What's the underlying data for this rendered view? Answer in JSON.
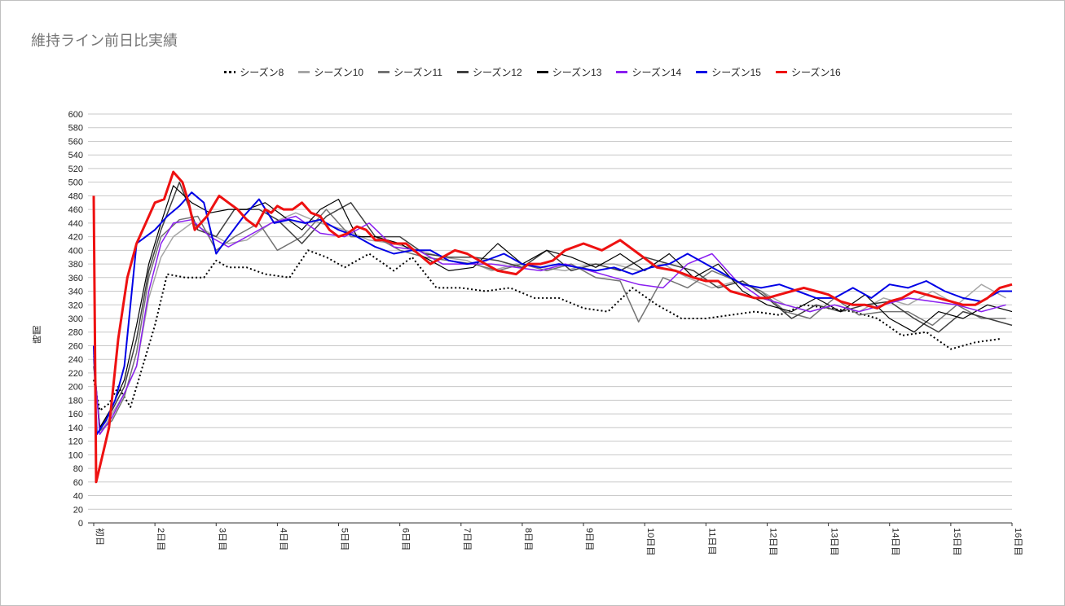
{
  "chart_data": {
    "type": "line",
    "title": "維持ライン前日比実績",
    "ylabel": "時間",
    "ylim": [
      0,
      600
    ],
    "ytick_step": 20,
    "grid": true,
    "legend_position": "top",
    "x_labels": [
      "初日",
      "2日目",
      "3日目",
      "4日目",
      "5日目",
      "6日目",
      "7日目",
      "8日目",
      "9日目",
      "10日目",
      "11日目",
      "12日目",
      "13日目",
      "14日目",
      "15日目",
      "16日目"
    ],
    "x_domain": [
      0,
      15
    ],
    "series": [
      {
        "name": "シーズン8",
        "color": "#000000",
        "style": "dotted",
        "width": 2,
        "x": [
          0,
          0.1,
          0.25,
          0.4,
          0.6,
          0.8,
          1.0,
          1.2,
          1.5,
          1.8,
          2.0,
          2.2,
          2.5,
          2.8,
          3.2,
          3.5,
          3.8,
          4.1,
          4.5,
          4.9,
          5.2,
          5.6,
          6.0,
          6.4,
          6.8,
          7.2,
          7.6,
          8.0,
          8.4,
          8.8,
          9.2,
          9.6,
          10.0,
          10.4,
          10.8,
          11.2,
          11.6,
          12.0,
          12.4,
          12.8,
          13.2,
          13.6,
          14.0,
          14.4,
          14.8
        ],
        "y": [
          210,
          165,
          175,
          200,
          170,
          230,
          290,
          365,
          360,
          360,
          385,
          375,
          375,
          365,
          360,
          400,
          390,
          375,
          395,
          370,
          390,
          345,
          345,
          340,
          345,
          330,
          330,
          315,
          310,
          345,
          320,
          300,
          300,
          305,
          310,
          305,
          320,
          315,
          310,
          300,
          275,
          280,
          255,
          265,
          270
        ]
      },
      {
        "name": "シーズン10",
        "color": "#a6a6a6",
        "style": "solid",
        "width": 1.5,
        "x": [
          0,
          0.1,
          0.3,
          0.5,
          0.7,
          0.9,
          1.1,
          1.3,
          1.6,
          1.9,
          2.2,
          2.5,
          2.9,
          3.3,
          3.7,
          4.1,
          4.5,
          4.9,
          5.3,
          5.7,
          6.1,
          6.5,
          6.9,
          7.3,
          7.7,
          8.1,
          8.5,
          8.9,
          9.3,
          9.7,
          10.1,
          10.5,
          10.9,
          11.3,
          11.7,
          12.1,
          12.5,
          12.9,
          13.3,
          13.7,
          14.1,
          14.5,
          14.9
        ],
        "y": [
          250,
          130,
          160,
          190,
          230,
          330,
          390,
          420,
          440,
          425,
          410,
          415,
          440,
          455,
          440,
          430,
          415,
          410,
          400,
          390,
          385,
          370,
          380,
          375,
          370,
          380,
          380,
          370,
          380,
          360,
          345,
          355,
          340,
          320,
          310,
          320,
          310,
          330,
          320,
          340,
          320,
          350,
          330
        ]
      },
      {
        "name": "シーズン11",
        "color": "#737373",
        "style": "solid",
        "width": 1.5,
        "x": [
          0,
          0.1,
          0.3,
          0.5,
          0.7,
          0.9,
          1.1,
          1.4,
          1.7,
          2.0,
          2.3,
          2.7,
          3.0,
          3.4,
          3.8,
          4.2,
          4.6,
          5.0,
          5.4,
          5.8,
          6.2,
          6.6,
          7.0,
          7.4,
          7.8,
          8.2,
          8.6,
          8.9,
          9.3,
          9.7,
          10.1,
          10.5,
          10.9,
          11.3,
          11.7,
          12.1,
          12.5,
          12.9,
          13.3,
          13.7,
          14.1,
          14.5,
          14.9
        ],
        "y": [
          240,
          135,
          150,
          185,
          250,
          360,
          420,
          445,
          450,
          400,
          420,
          440,
          400,
          420,
          460,
          420,
          420,
          400,
          390,
          385,
          380,
          370,
          380,
          370,
          380,
          360,
          355,
          295,
          360,
          345,
          370,
          355,
          340,
          310,
          300,
          330,
          305,
          310,
          310,
          290,
          320,
          300,
          300
        ]
      },
      {
        "name": "シーズン12",
        "color": "#404040",
        "style": "solid",
        "width": 1.5,
        "x": [
          0,
          0.1,
          0.3,
          0.5,
          0.7,
          0.9,
          1.1,
          1.4,
          1.7,
          2.0,
          2.3,
          2.7,
          3.0,
          3.4,
          3.8,
          4.2,
          4.6,
          5.0,
          5.4,
          5.8,
          6.2,
          6.6,
          7.0,
          7.4,
          7.8,
          8.2,
          8.6,
          9.0,
          9.4,
          9.8,
          10.2,
          10.6,
          11.0,
          11.4,
          11.8,
          12.2,
          12.6,
          13.0,
          13.4,
          13.8,
          14.2,
          14.6,
          15.0
        ],
        "y": [
          230,
          140,
          165,
          200,
          270,
          370,
          430,
          500,
          430,
          420,
          460,
          460,
          445,
          410,
          450,
          470,
          420,
          420,
          395,
          390,
          390,
          385,
          375,
          400,
          370,
          380,
          370,
          390,
          380,
          370,
          345,
          355,
          330,
          300,
          320,
          310,
          320,
          325,
          300,
          280,
          310,
          300,
          290
        ]
      },
      {
        "name": "シーズン13",
        "color": "#000000",
        "style": "solid",
        "width": 1.2,
        "x": [
          0,
          0.1,
          0.3,
          0.5,
          0.7,
          0.9,
          1.1,
          1.3,
          1.6,
          1.9,
          2.2,
          2.5,
          2.8,
          3.1,
          3.4,
          3.7,
          4.0,
          4.3,
          4.6,
          5.0,
          5.4,
          5.8,
          6.2,
          6.6,
          7.0,
          7.4,
          7.8,
          8.2,
          8.6,
          9.0,
          9.4,
          9.8,
          10.2,
          10.6,
          11.0,
          11.4,
          11.8,
          12.2,
          12.6,
          13.0,
          13.4,
          13.8,
          14.2,
          14.6,
          15.0
        ],
        "y": [
          240,
          140,
          170,
          210,
          290,
          380,
          440,
          495,
          470,
          455,
          460,
          460,
          470,
          450,
          430,
          460,
          475,
          420,
          420,
          410,
          390,
          370,
          375,
          410,
          380,
          400,
          390,
          375,
          395,
          370,
          395,
          360,
          380,
          340,
          320,
          310,
          330,
          310,
          335,
          300,
          280,
          310,
          300,
          320,
          310
        ]
      },
      {
        "name": "シーズン14",
        "color": "#8a1ef0",
        "style": "solid",
        "width": 1.5,
        "x": [
          0,
          0.1,
          0.3,
          0.5,
          0.7,
          0.9,
          1.1,
          1.3,
          1.6,
          1.9,
          2.2,
          2.5,
          2.9,
          3.3,
          3.7,
          4.1,
          4.5,
          4.9,
          5.3,
          5.7,
          6.1,
          6.5,
          6.9,
          7.3,
          7.7,
          8.1,
          8.5,
          8.9,
          9.3,
          9.7,
          10.1,
          10.5,
          10.9,
          11.3,
          11.7,
          12.1,
          12.5,
          12.9,
          13.3,
          13.7,
          14.1,
          14.5,
          14.9
        ],
        "y": [
          245,
          130,
          155,
          190,
          230,
          340,
          410,
          440,
          445,
          420,
          405,
          420,
          440,
          450,
          425,
          420,
          440,
          405,
          400,
          380,
          380,
          380,
          375,
          370,
          380,
          370,
          360,
          350,
          345,
          380,
          395,
          355,
          330,
          320,
          310,
          320,
          310,
          320,
          330,
          325,
          320,
          310,
          320
        ]
      },
      {
        "name": "シーズン15",
        "color": "#0000e6",
        "style": "solid",
        "width": 2,
        "x": [
          0,
          0.05,
          0.2,
          0.35,
          0.5,
          0.7,
          0.85,
          1.0,
          1.2,
          1.4,
          1.6,
          1.8,
          2.0,
          2.2,
          2.45,
          2.7,
          2.95,
          3.2,
          3.45,
          3.7,
          4.0,
          4.3,
          4.6,
          4.9,
          5.2,
          5.5,
          5.8,
          6.1,
          6.4,
          6.7,
          7.0,
          7.3,
          7.6,
          7.9,
          8.2,
          8.5,
          8.8,
          9.1,
          9.4,
          9.7,
          10.0,
          10.3,
          10.6,
          10.9,
          11.2,
          11.5,
          11.8,
          12.1,
          12.4,
          12.7,
          13.0,
          13.3,
          13.6,
          13.9,
          14.2,
          14.5,
          14.8,
          15.0
        ],
        "y": [
          260,
          130,
          150,
          180,
          230,
          410,
          420,
          430,
          450,
          465,
          485,
          470,
          395,
          420,
          450,
          475,
          440,
          445,
          440,
          445,
          430,
          420,
          405,
          395,
          400,
          400,
          385,
          380,
          385,
          395,
          380,
          375,
          380,
          375,
          370,
          375,
          365,
          375,
          380,
          395,
          380,
          365,
          350,
          345,
          350,
          340,
          330,
          330,
          345,
          330,
          350,
          345,
          355,
          340,
          330,
          325,
          340,
          340
        ]
      },
      {
        "name": "シーズン16",
        "color": "#ee1111",
        "style": "solid",
        "width": 3,
        "x": [
          0,
          0.04,
          0.12,
          0.25,
          0.4,
          0.55,
          0.7,
          0.85,
          1.0,
          1.15,
          1.3,
          1.45,
          1.55,
          1.65,
          1.75,
          1.85,
          1.95,
          2.05,
          2.2,
          2.35,
          2.5,
          2.65,
          2.8,
          2.9,
          3.0,
          3.1,
          3.25,
          3.4,
          3.55,
          3.7,
          3.85,
          4.0,
          4.15,
          4.3,
          4.45,
          4.6,
          4.75,
          4.9,
          5.1,
          5.3,
          5.5,
          5.7,
          5.9,
          6.1,
          6.3,
          6.6,
          6.9,
          7.1,
          7.3,
          7.5,
          7.7,
          8.0,
          8.3,
          8.6,
          8.9,
          9.2,
          9.5,
          9.8,
          10.0,
          10.2,
          10.4,
          10.6,
          10.8,
          11.0,
          11.2,
          11.4,
          11.6,
          11.8,
          12.0,
          12.2,
          12.4,
          12.6,
          12.8,
          13.0,
          13.2,
          13.4,
          13.6,
          13.8,
          14.0,
          14.2,
          14.4,
          14.6,
          14.8,
          15.0
        ],
        "y": [
          480,
          60,
          90,
          140,
          270,
          360,
          410,
          440,
          470,
          475,
          515,
          500,
          470,
          430,
          440,
          450,
          465,
          480,
          470,
          460,
          445,
          435,
          460,
          455,
          465,
          460,
          460,
          470,
          455,
          450,
          430,
          420,
          425,
          435,
          430,
          415,
          415,
          410,
          410,
          395,
          380,
          390,
          400,
          395,
          385,
          370,
          365,
          380,
          380,
          385,
          400,
          410,
          400,
          415,
          395,
          375,
          370,
          360,
          355,
          355,
          340,
          335,
          330,
          330,
          335,
          340,
          345,
          340,
          335,
          325,
          320,
          320,
          315,
          325,
          330,
          340,
          335,
          330,
          325,
          320,
          320,
          330,
          345,
          350
        ]
      }
    ]
  }
}
